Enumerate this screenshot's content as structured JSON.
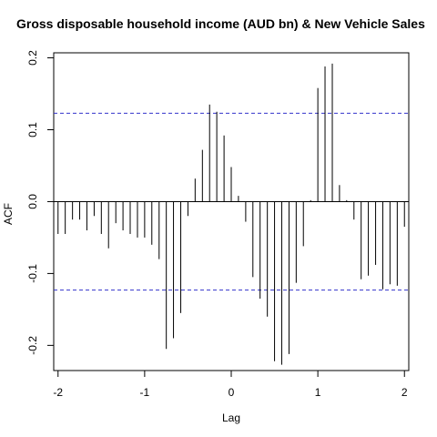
{
  "chart_data": {
    "type": "bar",
    "title": "Gross disposable household income (AUD bn) & New Vehicle Sales",
    "xlabel": "Lag",
    "ylabel": "ACF",
    "xlim": [
      -2.05,
      2.05
    ],
    "ylim": [
      -0.235,
      0.207
    ],
    "x_ticks": [
      -2,
      -1,
      0,
      1,
      2
    ],
    "x_tick_labels": [
      "-2",
      "-1",
      "0",
      "1",
      "2"
    ],
    "y_ticks": [
      -0.2,
      -0.1,
      0.0,
      0.1,
      0.2
    ],
    "y_tick_labels": [
      "-0.2",
      "-0.1",
      "0.0",
      "0.1",
      "0.2"
    ],
    "confidence_bound": 0.123,
    "grid": false,
    "legend": "none",
    "lags": [
      -2.0,
      -1.917,
      -1.833,
      -1.75,
      -1.667,
      -1.583,
      -1.5,
      -1.417,
      -1.333,
      -1.25,
      -1.167,
      -1.083,
      -1.0,
      -0.917,
      -0.833,
      -0.75,
      -0.667,
      -0.583,
      -0.5,
      -0.417,
      -0.333,
      -0.25,
      -0.167,
      -0.083,
      0.0,
      0.083,
      0.167,
      0.25,
      0.333,
      0.417,
      0.5,
      0.583,
      0.667,
      0.75,
      0.833,
      0.917,
      1.0,
      1.083,
      1.167,
      1.25,
      1.333,
      1.417,
      1.5,
      1.583,
      1.667,
      1.75,
      1.833,
      1.917,
      2.0
    ],
    "values": [
      -0.045,
      -0.045,
      -0.025,
      -0.025,
      -0.04,
      -0.02,
      -0.045,
      -0.065,
      -0.03,
      -0.04,
      -0.045,
      -0.05,
      -0.05,
      -0.06,
      -0.08,
      -0.205,
      -0.19,
      -0.155,
      -0.02,
      0.032,
      0.072,
      0.135,
      0.125,
      0.092,
      0.048,
      0.008,
      -0.028,
      -0.105,
      -0.135,
      -0.16,
      -0.222,
      -0.227,
      -0.212,
      -0.113,
      -0.062,
      0.002,
      0.158,
      0.188,
      0.192,
      0.023,
      0.002,
      -0.025,
      -0.108,
      -0.103,
      -0.088,
      -0.122,
      -0.115,
      -0.117,
      -0.035
    ],
    "colors": {
      "bars": "#000000",
      "bound": "#3333cc",
      "zero_line": "#000000",
      "frame": "#000000"
    }
  }
}
